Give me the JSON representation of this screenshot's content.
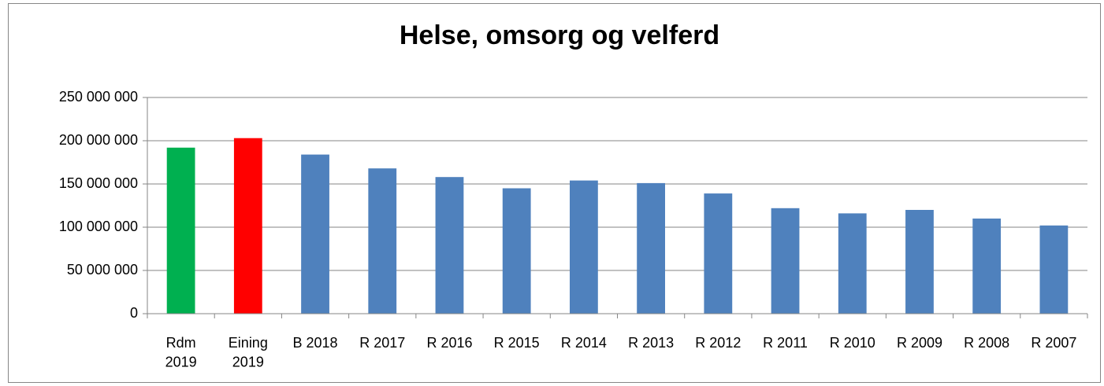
{
  "chart_data": {
    "type": "bar",
    "title": "Helse, omsorg og velferd",
    "categories": [
      "Rdm\n2019",
      "Eining\n2019",
      "B 2018",
      "R 2017",
      "R 2016",
      "R 2015",
      "R 2014",
      "R 2013",
      "R 2012",
      "R 2011",
      "R 2010",
      "R 2009",
      "R 2008",
      "R 2007"
    ],
    "values": [
      192000000,
      203000000,
      184000000,
      168000000,
      158000000,
      145000000,
      154000000,
      151000000,
      139000000,
      122000000,
      116000000,
      120000000,
      110000000,
      102000000
    ],
    "colors": [
      "#00b050",
      "#ff0000",
      "#4f81bd",
      "#4f81bd",
      "#4f81bd",
      "#4f81bd",
      "#4f81bd",
      "#4f81bd",
      "#4f81bd",
      "#4f81bd",
      "#4f81bd",
      "#4f81bd",
      "#4f81bd",
      "#4f81bd"
    ],
    "ylim": [
      0,
      250000000
    ],
    "yticks": [
      0,
      {
        "value": 50000000,
        "label": "50 000 000"
      },
      {
        "value": 100000000,
        "label": "100 000 000"
      },
      {
        "value": 150000000,
        "label": "150 000 000"
      },
      {
        "value": 200000000,
        "label": "200 000 000"
      },
      {
        "value": 250000000,
        "label": "250 000 000"
      }
    ],
    "grid": true
  }
}
